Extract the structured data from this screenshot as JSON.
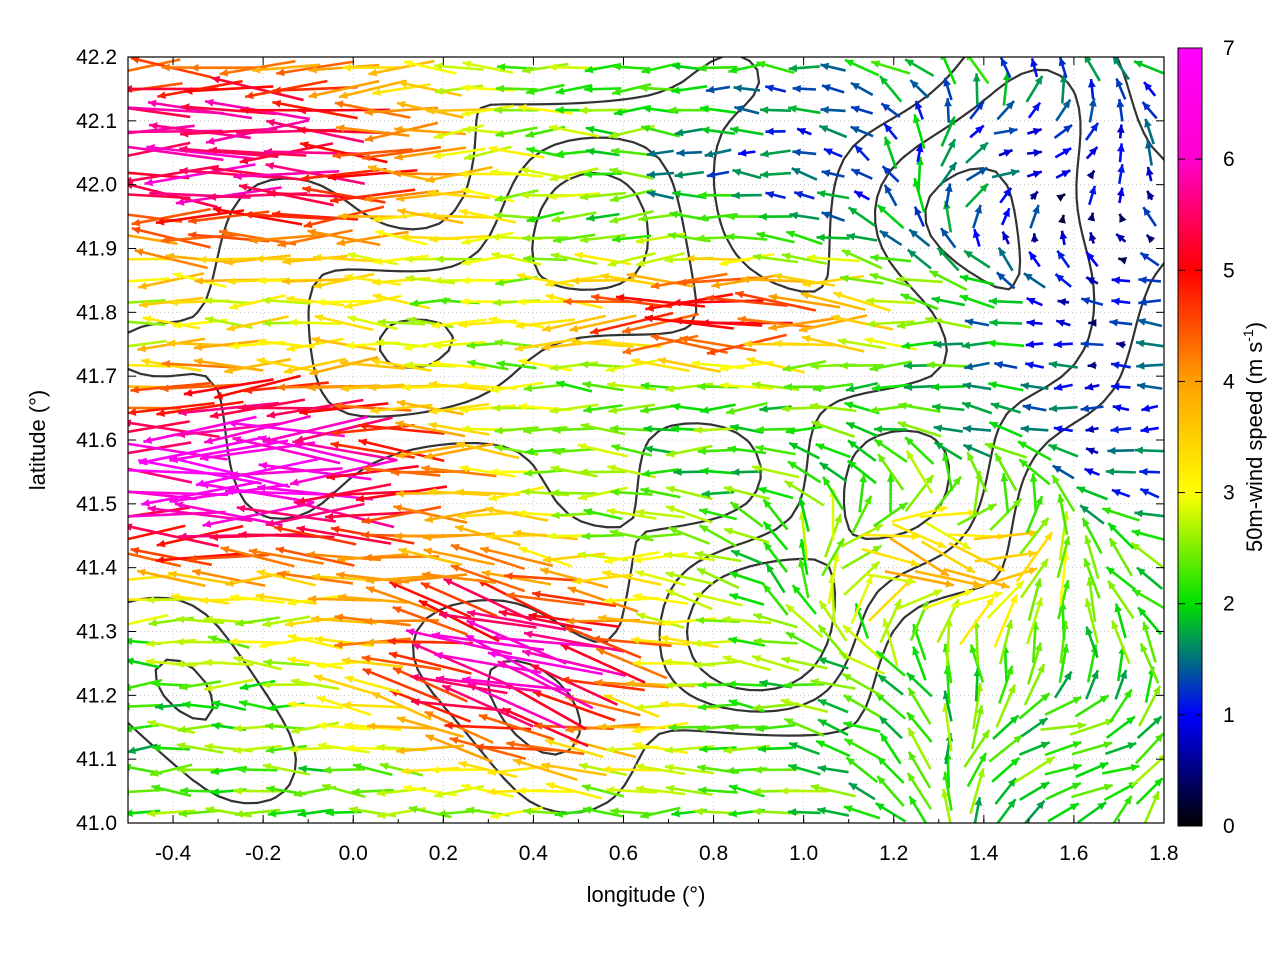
{
  "chart_data": {
    "type": "vector-field",
    "xlabel": "longitude (°)",
    "ylabel": "latitude (°)",
    "xlim": [
      -0.5,
      1.8
    ],
    "ylim": [
      41.0,
      42.2
    ],
    "xticks": [
      "-0.4",
      "-0.2",
      "0.0",
      "0.2",
      "0.4",
      "0.6",
      "0.8",
      "1.0",
      "1.2",
      "1.4",
      "1.6",
      "1.8"
    ],
    "xtick_values": [
      -0.4,
      -0.2,
      0.0,
      0.2,
      0.4,
      0.6,
      0.8,
      1.0,
      1.2,
      1.4,
      1.6,
      1.8
    ],
    "yticks": [
      "41.0",
      "41.1",
      "41.2",
      "41.3",
      "41.4",
      "41.5",
      "41.6",
      "41.7",
      "41.8",
      "41.9",
      "42.0",
      "42.1",
      "42.2"
    ],
    "ytick_values": [
      41.0,
      41.1,
      41.2,
      41.3,
      41.4,
      41.5,
      41.6,
      41.7,
      41.8,
      41.9,
      42.0,
      42.1,
      42.2
    ],
    "grid": true,
    "colorbar": {
      "label_main": "50m-wind speed (m s",
      "label_sup": "-1",
      "label_close": ")",
      "range": [
        0,
        7
      ],
      "ticks": [
        "0",
        "1",
        "2",
        "3",
        "4",
        "5",
        "6",
        "7"
      ],
      "tick_values": [
        0,
        1,
        2,
        3,
        4,
        5,
        6,
        7
      ],
      "colors": [
        "#000000",
        "#0000ff",
        "#00e000",
        "#ffff00",
        "#ffa000",
        "#ff0000",
        "#ff00ff"
      ]
    },
    "vector_regions": [
      {
        "x": [
          -0.5,
          0.3
        ],
        "y": [
          41.42,
          41.66
        ],
        "direction": "west",
        "speed": 7.0
      },
      {
        "x": [
          -0.5,
          0.2
        ],
        "y": [
          41.9,
          42.2
        ],
        "direction": "west",
        "speed": 6.0
      },
      {
        "x": [
          0.2,
          0.6
        ],
        "y": [
          41.15,
          41.42
        ],
        "direction": "west-northwest",
        "speed": 6.8
      },
      {
        "x": [
          0.4,
          1.0
        ],
        "y": [
          41.72,
          41.86
        ],
        "direction": "west",
        "speed": 5.5
      },
      {
        "x": [
          1.0,
          1.6
        ],
        "y": [
          41.3,
          41.5
        ],
        "direction": "northeast",
        "speed": 3.5
      },
      {
        "x": [
          1.4,
          1.8
        ],
        "y": [
          41.0,
          41.3
        ],
        "direction": "east",
        "speed": 2.0
      },
      {
        "x": [
          1.2,
          1.8
        ],
        "y": [
          41.8,
          42.2
        ],
        "direction": "east",
        "speed": 1.0
      },
      {
        "x": [
          0.6,
          1.4
        ],
        "y": [
          41.5,
          41.75
        ],
        "direction": "west",
        "speed": 2.2
      }
    ],
    "contours": "terrain elevation isolines (black, unlabeled)"
  }
}
